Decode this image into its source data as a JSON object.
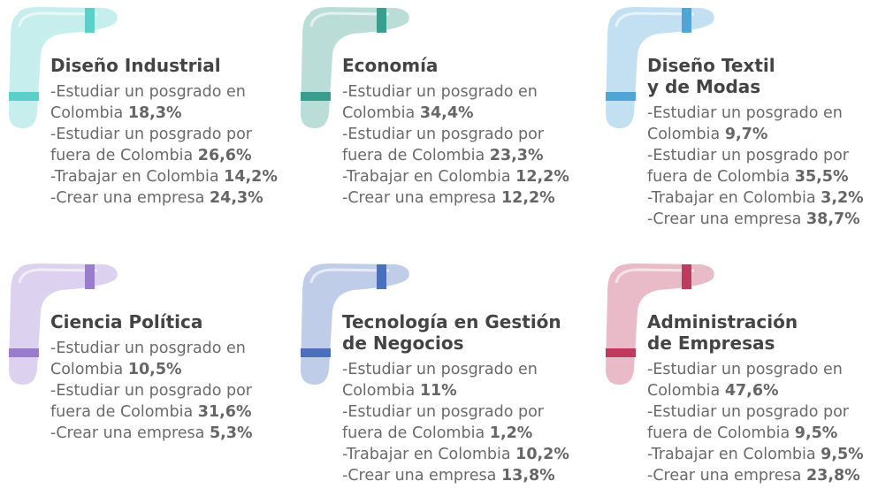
{
  "cards": [
    {
      "title": [
        "Diseño Industrial"
      ],
      "color": "#5ccfc8",
      "items": [
        {
          "label": [
            "-Estudiar un posgrado en",
            "Colombia"
          ],
          "value": "18,3%"
        },
        {
          "label": [
            "-Estudiar un posgrado por",
            "fuera de Colombia"
          ],
          "value": "26,6%"
        },
        {
          "label": [
            "-Trabajar en Colombia"
          ],
          "value": "14,2%"
        },
        {
          "label": [
            "-Crear una empresa"
          ],
          "value": "24,3%"
        }
      ]
    },
    {
      "title": [
        "Economía"
      ],
      "color": "#3a9e8e",
      "items": [
        {
          "label": [
            "-Estudiar un posgrado en",
            "Colombia"
          ],
          "value": "34,4%"
        },
        {
          "label": [
            "-Estudiar un posgrado por",
            "fuera de Colombia"
          ],
          "value": "23,3%"
        },
        {
          "label": [
            "-Trabajar en Colombia"
          ],
          "value": "12,2%"
        },
        {
          "label": [
            "-Crear una empresa"
          ],
          "value": "12,2%"
        }
      ]
    },
    {
      "title": [
        "Diseño Textil",
        "y de Modas"
      ],
      "color": "#4fa6d6",
      "items": [
        {
          "label": [
            "-Estudiar un posgrado en",
            "Colombia"
          ],
          "value": "9,7%"
        },
        {
          "label": [
            "-Estudiar un posgrado por",
            "fuera de Colombia"
          ],
          "value": "35,5%"
        },
        {
          "label": [
            "-Trabajar en Colombia"
          ],
          "value": "3,2%"
        },
        {
          "label": [
            "-Crear una empresa"
          ],
          "value": "38,7%"
        }
      ]
    },
    {
      "title": [
        "Ciencia Política"
      ],
      "color": "#9a7ccf",
      "items": [
        {
          "label": [
            "-Estudiar un posgrado en",
            "Colombia"
          ],
          "value": "10,5%"
        },
        {
          "label": [
            "-Estudiar un posgrado por",
            "fuera de Colombia"
          ],
          "value": "31,6%"
        },
        {
          "label": [
            "-Crear una empresa"
          ],
          "value": "5,3%"
        }
      ]
    },
    {
      "title": [
        "Tecnología en Gestión",
        "de Negocios"
      ],
      "color": "#4a6fbf",
      "items": [
        {
          "label": [
            "-Estudiar un posgrado en",
            "Colombia"
          ],
          "value": "11%"
        },
        {
          "label": [
            "-Estudiar un posgrado por",
            "fuera de Colombia"
          ],
          "value": "1,2%"
        },
        {
          "label": [
            "-Trabajar en Colombia"
          ],
          "value": "10,2%"
        },
        {
          "label": [
            "-Crear una empresa"
          ],
          "value": "13,8%"
        }
      ]
    },
    {
      "title": [
        "Administración",
        "de Empresas"
      ],
      "color": "#c0395e",
      "items": [
        {
          "label": [
            "-Estudiar un posgrado en",
            "Colombia"
          ],
          "value": "47,6%"
        },
        {
          "label": [
            "-Estudiar un posgrado por",
            "fuera de Colombia"
          ],
          "value": "9,5%"
        },
        {
          "label": [
            "-Trabajar en Colombia"
          ],
          "value": "9,5%"
        },
        {
          "label": [
            "-Crear una empresa"
          ],
          "value": "23,8%"
        }
      ]
    }
  ]
}
